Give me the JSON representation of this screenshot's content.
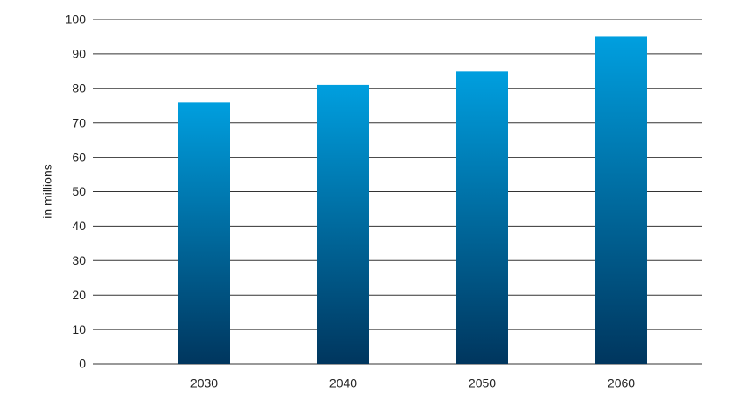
{
  "chart_data": {
    "type": "bar",
    "y_label": "in millions",
    "categories": [
      "2030",
      "2040",
      "2050",
      "2060"
    ],
    "values": [
      76,
      81,
      85,
      95
    ],
    "gradient": {
      "top": "#009fdf",
      "bottom": "#00365e"
    },
    "ylim": [
      0,
      100
    ],
    "yticks": [
      0,
      10,
      20,
      30,
      40,
      50,
      60,
      70,
      80,
      90,
      100
    ],
    "grid": true
  }
}
